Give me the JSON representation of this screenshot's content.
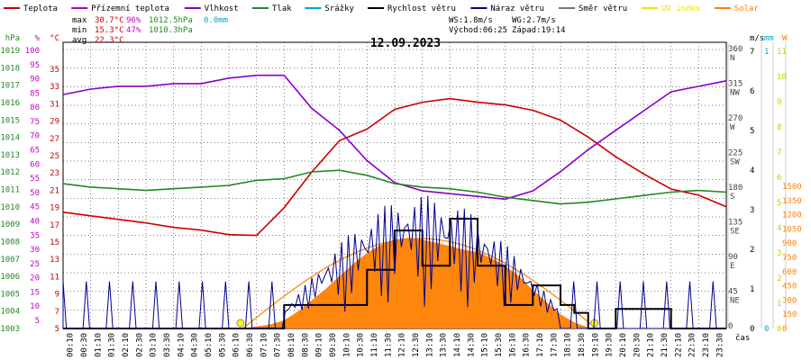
{
  "chart_data": {
    "type": "line",
    "title": "12.09.2023",
    "legend": [
      {
        "label": "Teplota",
        "color": "#cc0000"
      },
      {
        "label": "Přízemní teplota",
        "color": "#aa00cc"
      },
      {
        "label": "Vlhkost",
        "color": "#8a00c8"
      },
      {
        "label": "Tlak",
        "color": "#228822"
      },
      {
        "label": "Srážky",
        "color": "#00aacc"
      },
      {
        "label": "Rychlost větru",
        "color": "#000000"
      },
      {
        "label": "Náraz větru",
        "color": "#00008b"
      },
      {
        "label": "Směr větru",
        "color": "#777777"
      },
      {
        "label": "UV index",
        "color": "#e6e600"
      },
      {
        "label": "Solar",
        "color": "#ff8000"
      }
    ],
    "stats": {
      "max_label": "max",
      "max_temp": "30.7°C",
      "max_hum": "96%",
      "max_press": "1012.5hPa",
      "rain": "0.0mm",
      "min_label": "min",
      "min_temp": "15.3°C",
      "min_hum": "47%",
      "min_press": "1010.3hPa",
      "avg_label": "avg",
      "avg_temp": "22.3°C",
      "ws": "WS:1.8m/s",
      "wg": "WG:2.7m/s",
      "sunrise": "Východ:06:25",
      "sunset": "Západ:19:14"
    },
    "xlabel": "čas",
    "x_ticks": [
      "00:10",
      "00:30",
      "01:10",
      "01:30",
      "02:10",
      "02:30",
      "03:10",
      "03:30",
      "04:10",
      "04:30",
      "05:10",
      "05:30",
      "06:10",
      "06:30",
      "07:10",
      "07:30",
      "08:10",
      "08:30",
      "09:10",
      "09:30",
      "10:10",
      "10:30",
      "11:10",
      "11:30",
      "12:10",
      "12:30",
      "13:10",
      "13:30",
      "14:10",
      "14:30",
      "15:10",
      "15:30",
      "16:10",
      "16:30",
      "17:10",
      "17:30",
      "18:10",
      "18:30",
      "19:10",
      "19:30",
      "20:10",
      "20:30",
      "21:10",
      "21:30",
      "22:10",
      "22:30",
      "23:10",
      "23:30"
    ],
    "axes": {
      "hpa": {
        "label": "hPa",
        "color": "#228822",
        "range": [
          1003,
          1020
        ],
        "ticks": [
          "1019",
          "1018",
          "1017",
          "1016",
          "1015",
          "1014",
          "1013",
          "1012",
          "1011",
          "1010",
          "1009",
          "1008",
          "1007",
          "1006",
          "1005",
          "1004",
          "1003"
        ]
      },
      "pct": {
        "label": "%",
        "color": "#cc00cc",
        "range": [
          0,
          100
        ],
        "ticks": [
          "100",
          "95",
          "90",
          "85",
          "80",
          "75",
          "70",
          "65",
          "60",
          "55",
          "50",
          "45",
          "40",
          "35",
          "30",
          "25",
          "20",
          "15",
          "10",
          "5"
        ]
      },
      "temp": {
        "label": "°C",
        "color": "#cc0000",
        "range": [
          5,
          37
        ],
        "ticks": [
          "35",
          "33",
          "31",
          "29",
          "27",
          "25",
          "23",
          "21",
          "19",
          "17",
          "15",
          "13",
          "11",
          "9",
          "7",
          "5"
        ]
      },
      "dir": {
        "label": "",
        "color": "#555555",
        "ticks": [
          {
            "v": "360",
            "d": "N"
          },
          {
            "v": "315",
            "d": "NW"
          },
          {
            "v": "270",
            "d": "W"
          },
          {
            "v": "225",
            "d": "SW"
          },
          {
            "v": "180",
            "d": "S"
          },
          {
            "v": "135",
            "d": "SE"
          },
          {
            "v": "90",
            "d": "E"
          },
          {
            "v": "45",
            "d": "NE"
          },
          {
            "v": "0",
            "d": ""
          }
        ]
      },
      "ms": {
        "label": "m/s",
        "color": "#000000",
        "ticks": [
          "7",
          "6",
          "5",
          "4",
          "3",
          "2",
          "1",
          "0"
        ]
      },
      "mm": {
        "label": "mm",
        "color": "#00aacc",
        "ticks": [
          "1",
          "0"
        ]
      },
      "uv": {
        "label": "",
        "color": "#cccc00",
        "ticks": [
          "11",
          "10",
          "9",
          "8",
          "7",
          "6",
          "5",
          "4",
          "3",
          "2",
          "1",
          "0"
        ]
      },
      "w": {
        "label": "W",
        "color": "#ff8000",
        "ticks": [
          "1500",
          "1350",
          "1200",
          "1050",
          "900",
          "750",
          "600",
          "450",
          "300",
          "150",
          "0"
        ]
      }
    },
    "series": [
      {
        "name": "Teplota",
        "color": "#cc0000",
        "x": [
          0,
          1,
          2,
          3,
          4,
          5,
          6,
          7,
          8,
          9,
          10,
          11,
          12,
          13,
          14,
          15,
          16,
          17,
          18,
          19,
          20,
          21,
          22,
          23,
          24
        ],
        "values": [
          18.0,
          17.6,
          17.2,
          16.8,
          16.3,
          16.0,
          15.5,
          15.4,
          18.5,
          22.5,
          26.0,
          27.3,
          29.5,
          30.3,
          30.7,
          30.3,
          30.0,
          29.4,
          28.3,
          26.4,
          24.2,
          22.3,
          20.6,
          19.9,
          18.6
        ]
      },
      {
        "name": "Vlhkost",
        "color": "#8a00c8",
        "x": [
          0,
          1,
          2,
          3,
          4,
          5,
          6,
          7,
          8,
          9,
          10,
          11,
          12,
          13,
          14,
          15,
          16,
          17,
          18,
          19,
          20,
          21,
          22,
          23,
          24
        ],
        "values": [
          85,
          87,
          88,
          88,
          89,
          89,
          91,
          92,
          92,
          80,
          72,
          61,
          53,
          50,
          49,
          48,
          47,
          50,
          57,
          65,
          72,
          79,
          86,
          88,
          90
        ]
      },
      {
        "name": "Tlak",
        "color": "#228822",
        "x": [
          0,
          1,
          2,
          3,
          4,
          5,
          6,
          7,
          8,
          9,
          10,
          11,
          12,
          13,
          14,
          15,
          16,
          17,
          18,
          19,
          20,
          21,
          22,
          23,
          24
        ],
        "values": [
          1011.6,
          1011.4,
          1011.3,
          1011.2,
          1011.3,
          1011.4,
          1011.5,
          1011.8,
          1011.9,
          1012.3,
          1012.4,
          1012.1,
          1011.6,
          1011.4,
          1011.3,
          1011.1,
          1010.8,
          1010.6,
          1010.4,
          1010.5,
          1010.7,
          1010.9,
          1011.1,
          1011.2,
          1011.1
        ]
      },
      {
        "name": "Solar",
        "color": "#ff8000",
        "x": [
          6.5,
          7,
          7.5,
          8,
          8.5,
          9,
          9.5,
          10,
          10.5,
          11,
          11.5,
          12,
          12.5,
          13,
          13.5,
          14,
          14.5,
          15,
          15.5,
          16,
          16.5,
          17,
          17.5,
          18,
          18.5,
          19,
          19.2
        ],
        "values": [
          0,
          20,
          40,
          80,
          170,
          280,
          390,
          520,
          640,
          750,
          830,
          880,
          900,
          880,
          850,
          820,
          780,
          760,
          700,
          620,
          520,
          380,
          260,
          140,
          60,
          10,
          0
        ]
      },
      {
        "name": "Rychlost větru",
        "color": "#000000",
        "x": [
          0,
          7.5,
          8,
          9,
          10,
          11,
          12,
          13,
          14,
          15,
          16,
          17,
          18,
          18.5,
          19,
          20,
          21,
          22,
          23
        ],
        "values": [
          0,
          0,
          0.6,
          0.6,
          0.6,
          1.5,
          2.5,
          1.6,
          2.8,
          1.6,
          0.6,
          1.1,
          0.6,
          0.4,
          0,
          0.5,
          0.5,
          0,
          0
        ]
      }
    ]
  }
}
